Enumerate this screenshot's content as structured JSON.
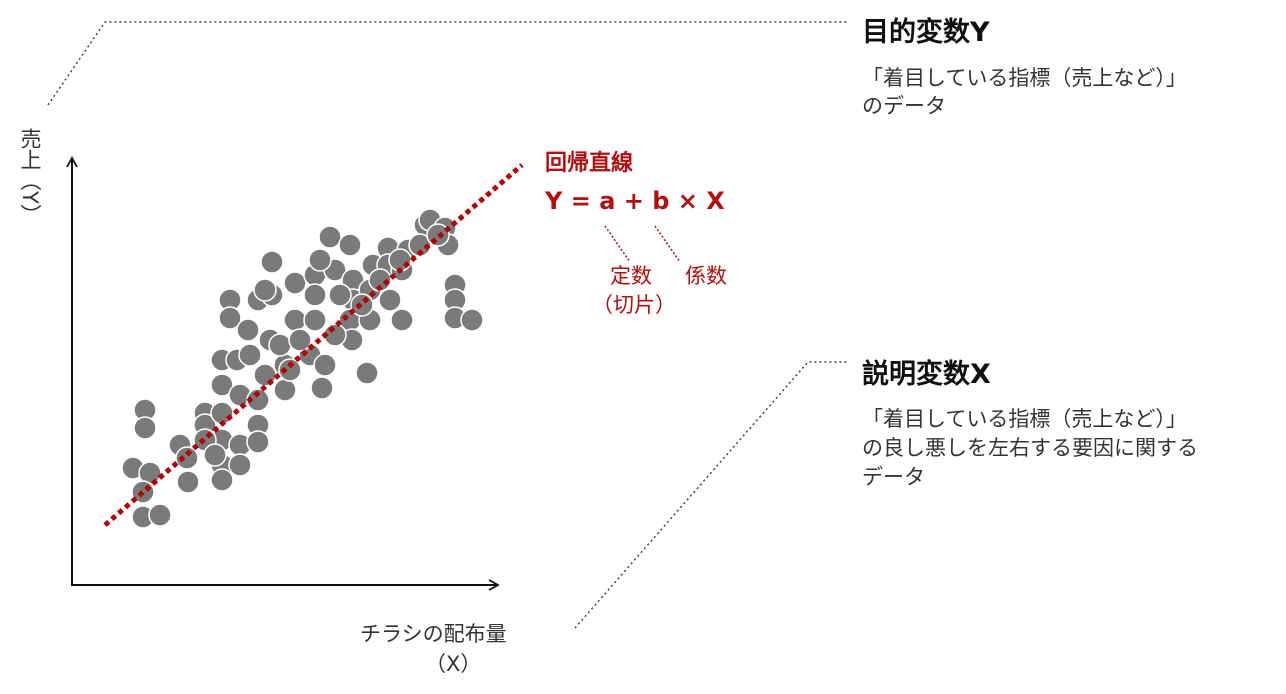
{
  "y_axis_label": "売上（Y）",
  "x_axis_label": [
    "チラシの配布量",
    "（X）"
  ],
  "regression": {
    "title": "回帰直線",
    "formula": "Y = a + b × X",
    "intercept": [
      "定数",
      "（切片）"
    ],
    "slope": "係数"
  },
  "objective": {
    "title": "目的変数Y",
    "description": [
      "「着目している指標（売上など）」",
      "のデータ"
    ]
  },
  "explanatory": {
    "title": "説明変数X",
    "description": [
      "「着目している指標（売上など）」",
      "の良し悪しを左右する要因に関する",
      "データ"
    ]
  }
}
